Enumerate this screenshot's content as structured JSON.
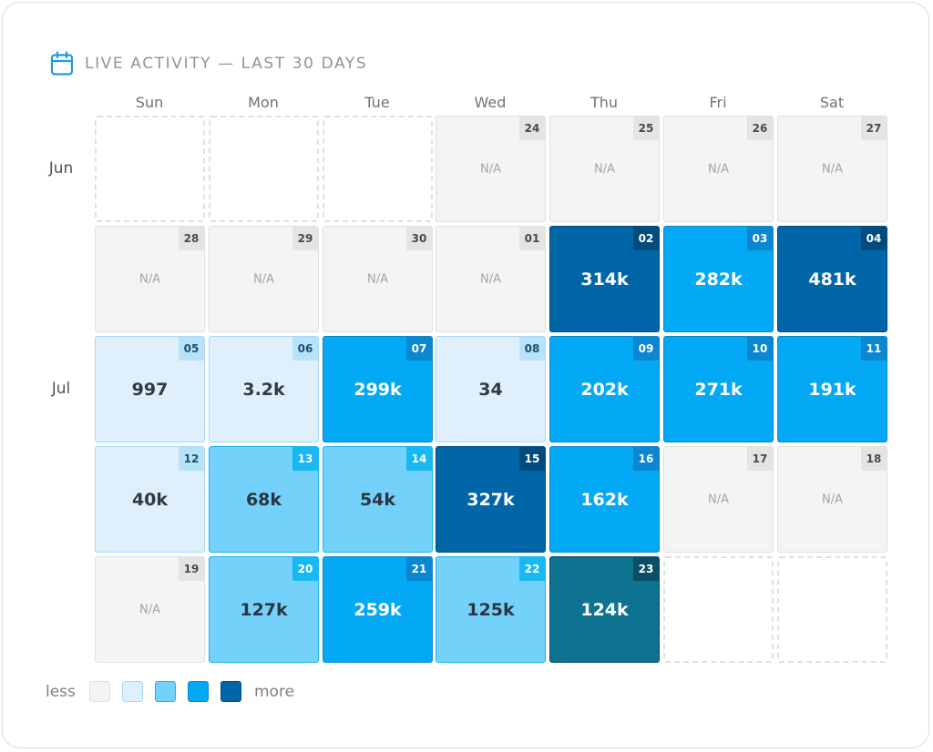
{
  "header": {
    "title": "LIVE ACTIVITY — LAST 30 DAYS",
    "icon": "calendar-icon"
  },
  "colors": {
    "accent": "#1a9be6",
    "levels": {
      "na": {
        "bg": "#f4f4f4",
        "border": "#dfdfdf",
        "badge": "#e4e4e4",
        "badge_text": "#4a4a4a",
        "text": "#a2a5a8"
      },
      "l1": {
        "bg": "#dff0fc",
        "border": "#a9d7f5",
        "badge": "#b6e2fa",
        "badge_text": "#1f4e70",
        "text": "#333a40"
      },
      "l2": {
        "bg": "#74d1fa",
        "border": "#1ab2ee",
        "badge": "#18b8f2",
        "badge_text": "#ffffff",
        "text": "#2b3640"
      },
      "l3": {
        "bg": "#03a9f4",
        "border": "#0b86c6",
        "badge": "#0b86d0",
        "badge_text": "#ffffff",
        "text": "#ffffff"
      },
      "l4": {
        "bg": "#0166a8",
        "border": "#014a7c",
        "badge": "#024b7d",
        "badge_text": "#ffffff",
        "text": "#ffffff"
      },
      "l4t": {
        "bg": "#0e7291",
        "border": "#0b4f66",
        "badge": "#0a4f66",
        "badge_text": "#ffffff",
        "text": "#ffffff"
      }
    }
  },
  "legend": {
    "less": "less",
    "more": "more",
    "levels": [
      "na",
      "l1",
      "l2",
      "l3",
      "l4"
    ]
  },
  "chart_data": {
    "type": "heatmap",
    "title": "LIVE ACTIVITY — LAST 30 DAYS",
    "weekdays": [
      "Sun",
      "Mon",
      "Tue",
      "Wed",
      "Thu",
      "Fri",
      "Sat"
    ],
    "month_labels": [
      {
        "label": "Jun",
        "row": 0
      },
      {
        "label": "Jul",
        "row": 2
      }
    ],
    "weeks": [
      [
        null,
        null,
        null,
        {
          "day": "24",
          "display": "N/A",
          "level": "na"
        },
        {
          "day": "25",
          "display": "N/A",
          "level": "na"
        },
        {
          "day": "26",
          "display": "N/A",
          "level": "na"
        },
        {
          "day": "27",
          "display": "N/A",
          "level": "na"
        }
      ],
      [
        {
          "day": "28",
          "display": "N/A",
          "level": "na"
        },
        {
          "day": "29",
          "display": "N/A",
          "level": "na"
        },
        {
          "day": "30",
          "display": "N/A",
          "level": "na"
        },
        {
          "day": "01",
          "display": "N/A",
          "level": "na"
        },
        {
          "day": "02",
          "display": "314k",
          "value": 314000,
          "level": "l4"
        },
        {
          "day": "03",
          "display": "282k",
          "value": 282000,
          "level": "l3"
        },
        {
          "day": "04",
          "display": "481k",
          "value": 481000,
          "level": "l4"
        }
      ],
      [
        {
          "day": "05",
          "display": "997",
          "value": 997,
          "level": "l1"
        },
        {
          "day": "06",
          "display": "3.2k",
          "value": 3200,
          "level": "l1"
        },
        {
          "day": "07",
          "display": "299k",
          "value": 299000,
          "level": "l3"
        },
        {
          "day": "08",
          "display": "34",
          "value": 34,
          "level": "l1"
        },
        {
          "day": "09",
          "display": "202k",
          "value": 202000,
          "level": "l3"
        },
        {
          "day": "10",
          "display": "271k",
          "value": 271000,
          "level": "l3"
        },
        {
          "day": "11",
          "display": "191k",
          "value": 191000,
          "level": "l3"
        }
      ],
      [
        {
          "day": "12",
          "display": "40k",
          "value": 40000,
          "level": "l1"
        },
        {
          "day": "13",
          "display": "68k",
          "value": 68000,
          "level": "l2"
        },
        {
          "day": "14",
          "display": "54k",
          "value": 54000,
          "level": "l2"
        },
        {
          "day": "15",
          "display": "327k",
          "value": 327000,
          "level": "l4"
        },
        {
          "day": "16",
          "display": "162k",
          "value": 162000,
          "level": "l3"
        },
        {
          "day": "17",
          "display": "N/A",
          "level": "na"
        },
        {
          "day": "18",
          "display": "N/A",
          "level": "na"
        }
      ],
      [
        {
          "day": "19",
          "display": "N/A",
          "level": "na"
        },
        {
          "day": "20",
          "display": "127k",
          "value": 127000,
          "level": "l2"
        },
        {
          "day": "21",
          "display": "259k",
          "value": 259000,
          "level": "l3"
        },
        {
          "day": "22",
          "display": "125k",
          "value": 125000,
          "level": "l2"
        },
        {
          "day": "23",
          "display": "124k",
          "value": 124000,
          "level": "l4t"
        },
        null,
        null
      ]
    ]
  }
}
